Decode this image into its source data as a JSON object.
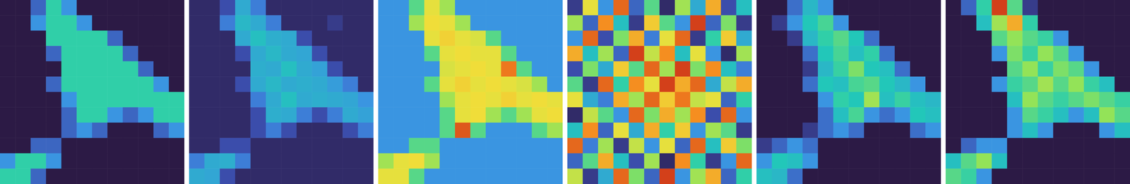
{
  "chart_data": [
    {
      "type": "heatmap",
      "tick_labels": false,
      "zlim": [
        0,
        1
      ],
      "cells": [
        [
          0,
          0,
          0.2,
          0.45,
          0.3,
          0,
          0,
          0,
          0,
          0,
          0,
          0
        ],
        [
          0,
          0,
          0.3,
          0.45,
          0.45,
          0.3,
          0,
          0,
          0,
          0,
          0,
          0
        ],
        [
          0,
          0,
          0,
          0.45,
          0.45,
          0.45,
          0.45,
          0.2,
          0,
          0,
          0,
          0
        ],
        [
          0,
          0,
          0,
          0.2,
          0.45,
          0.45,
          0.45,
          0.45,
          0.2,
          0,
          0,
          0
        ],
        [
          0,
          0,
          0,
          0,
          0.45,
          0.45,
          0.45,
          0.45,
          0.45,
          0.2,
          0,
          0
        ],
        [
          0,
          0,
          0,
          0.2,
          0.45,
          0.45,
          0.45,
          0.45,
          0.45,
          0.45,
          0.3,
          0
        ],
        [
          0,
          0,
          0,
          0,
          0.3,
          0.45,
          0.45,
          0.45,
          0.45,
          0.45,
          0.45,
          0.45
        ],
        [
          0,
          0,
          0,
          0,
          0.2,
          0.45,
          0.45,
          0.3,
          0.2,
          0.3,
          0.45,
          0.45
        ],
        [
          0,
          0,
          0,
          0,
          0.2,
          0.3,
          0.2,
          0,
          0,
          0,
          0.2,
          0.3
        ],
        [
          0,
          0,
          0.2,
          0.2,
          0,
          0,
          0,
          0,
          0,
          0,
          0,
          0
        ],
        [
          0.3,
          0.45,
          0.45,
          0.3,
          0,
          0,
          0,
          0,
          0,
          0,
          0,
          0
        ],
        [
          0.45,
          0.45,
          0.2,
          0,
          0,
          0,
          0,
          0,
          0,
          0,
          0,
          0
        ]
      ]
    },
    {
      "type": "heatmap",
      "tick_labels": false,
      "zlim": [
        0,
        1
      ],
      "cells": [
        [
          0.05,
          0.05,
          0.15,
          0.35,
          0.25,
          0.05,
          0.05,
          0.05,
          0.05,
          0.05,
          0.05,
          0.05
        ],
        [
          0.05,
          0.05,
          0.25,
          0.38,
          0.35,
          0.25,
          0.05,
          0.05,
          0.05,
          0.1,
          0.05,
          0.05
        ],
        [
          0.05,
          0.05,
          0.05,
          0.35,
          0.4,
          0.36,
          0.35,
          0.15,
          0.05,
          0.05,
          0.05,
          0.05
        ],
        [
          0.05,
          0.05,
          0.05,
          0.15,
          0.35,
          0.38,
          0.35,
          0.34,
          0.15,
          0.05,
          0.05,
          0.05
        ],
        [
          0.05,
          0.05,
          0.05,
          0.05,
          0.36,
          0.35,
          0.4,
          0.35,
          0.33,
          0.15,
          0.05,
          0.05
        ],
        [
          0.05,
          0.05,
          0.05,
          0.15,
          0.35,
          0.38,
          0.35,
          0.36,
          0.35,
          0.32,
          0.25,
          0.05
        ],
        [
          0.05,
          0.05,
          0.05,
          0.05,
          0.25,
          0.35,
          0.4,
          0.35,
          0.36,
          0.35,
          0.34,
          0.3
        ],
        [
          0.05,
          0.05,
          0.05,
          0.05,
          0.15,
          0.36,
          0.35,
          0.25,
          0.15,
          0.25,
          0.35,
          0.33
        ],
        [
          0.05,
          0.05,
          0.05,
          0.05,
          0.15,
          0.25,
          0.15,
          0.05,
          0.05,
          0.05,
          0.15,
          0.25
        ],
        [
          0.05,
          0.05,
          0.15,
          0.15,
          0.05,
          0.05,
          0.05,
          0.05,
          0.05,
          0.05,
          0.05,
          0.05
        ],
        [
          0.25,
          0.35,
          0.36,
          0.25,
          0.05,
          0.05,
          0.05,
          0.05,
          0.05,
          0.05,
          0.05,
          0.05
        ],
        [
          0.35,
          0.34,
          0.15,
          0.05,
          0.05,
          0.05,
          0.05,
          0.05,
          0.05,
          0.05,
          0.05,
          0.05
        ]
      ]
    },
    {
      "type": "heatmap",
      "tick_labels": false,
      "zlim": [
        0,
        1
      ],
      "cells": [
        [
          0.3,
          0.3,
          0.5,
          0.7,
          0.6,
          0.3,
          0.3,
          0.3,
          0.3,
          0.3,
          0.3,
          0.3
        ],
        [
          0.3,
          0.3,
          0.6,
          0.72,
          0.7,
          0.6,
          0.3,
          0.3,
          0.3,
          0.3,
          0.3,
          0.3
        ],
        [
          0.3,
          0.3,
          0.3,
          0.7,
          0.74,
          0.7,
          0.68,
          0.5,
          0.3,
          0.3,
          0.3,
          0.3
        ],
        [
          0.3,
          0.3,
          0.3,
          0.5,
          0.7,
          0.72,
          0.7,
          0.7,
          0.5,
          0.3,
          0.3,
          0.3
        ],
        [
          0.3,
          0.3,
          0.3,
          0.3,
          0.68,
          0.7,
          0.72,
          0.7,
          0.88,
          0.5,
          0.3,
          0.3
        ],
        [
          0.3,
          0.3,
          0.3,
          0.5,
          0.7,
          0.74,
          0.7,
          0.72,
          0.7,
          0.68,
          0.6,
          0.3
        ],
        [
          0.3,
          0.3,
          0.3,
          0.3,
          0.6,
          0.7,
          0.72,
          0.7,
          0.74,
          0.7,
          0.72,
          0.7
        ],
        [
          0.3,
          0.3,
          0.3,
          0.3,
          0.5,
          0.7,
          0.72,
          0.6,
          0.5,
          0.6,
          0.7,
          0.72
        ],
        [
          0.3,
          0.3,
          0.3,
          0.3,
          0.5,
          0.92,
          0.5,
          0.3,
          0.3,
          0.3,
          0.5,
          0.6
        ],
        [
          0.3,
          0.3,
          0.5,
          0.5,
          0.3,
          0.3,
          0.3,
          0.3,
          0.3,
          0.3,
          0.3,
          0.3
        ],
        [
          0.6,
          0.7,
          0.72,
          0.6,
          0.3,
          0.3,
          0.3,
          0.3,
          0.3,
          0.3,
          0.3,
          0.3
        ],
        [
          0.7,
          0.7,
          0.5,
          0.3,
          0.3,
          0.3,
          0.3,
          0.3,
          0.3,
          0.3,
          0.3,
          0.3
        ]
      ]
    },
    {
      "type": "heatmap",
      "tick_labels": false,
      "zlim": [
        0,
        1
      ],
      "cells": [
        [
          0.1,
          0.7,
          0.3,
          0.9,
          0.2,
          0.5,
          0.05,
          0.6,
          0.35,
          0.8,
          0.15,
          0.4
        ],
        [
          0.6,
          0.2,
          0.85,
          0.4,
          0.1,
          0.75,
          0.5,
          0.3,
          0.95,
          0.2,
          0.55,
          0.1
        ],
        [
          0.3,
          0.9,
          0.15,
          0.55,
          0.8,
          0.25,
          0.7,
          0.9,
          0.1,
          0.45,
          0.75,
          0.35
        ],
        [
          0.8,
          0.4,
          0.6,
          0.2,
          0.95,
          0.65,
          0.85,
          0.4,
          0.7,
          0.3,
          0.05,
          0.6
        ],
        [
          0.15,
          0.55,
          0.35,
          0.75,
          0.5,
          0.9,
          0.6,
          0.95,
          0.55,
          0.85,
          0.4,
          0.25
        ],
        [
          0.5,
          0.1,
          0.9,
          0.45,
          0.85,
          0.7,
          0.95,
          0.8,
          0.9,
          0.35,
          0.65,
          0.8
        ],
        [
          0.7,
          0.35,
          0.25,
          0.8,
          0.6,
          0.9,
          0.75,
          0.88,
          0.65,
          0.7,
          0.2,
          0.45
        ],
        [
          0.05,
          0.65,
          0.5,
          0.3,
          0.9,
          0.55,
          0.8,
          0.6,
          0.85,
          0.15,
          0.9,
          0.3
        ],
        [
          0.4,
          0.85,
          0.2,
          0.7,
          0.35,
          0.8,
          0.45,
          0.75,
          0.3,
          0.6,
          0.5,
          0.1
        ],
        [
          0.9,
          0.25,
          0.6,
          0.1,
          0.65,
          0.3,
          0.7,
          0.2,
          0.9,
          0.4,
          0.75,
          0.55
        ],
        [
          0.2,
          0.5,
          0.8,
          0.4,
          0.15,
          0.6,
          0.05,
          0.85,
          0.45,
          0.1,
          0.3,
          0.9
        ],
        [
          0.65,
          0.1,
          0.35,
          0.9,
          0.55,
          0.2,
          0.95,
          0.3,
          0.6,
          0.8,
          0.2,
          0.45
        ]
      ]
    },
    {
      "type": "heatmap",
      "tick_labels": false,
      "zlim": [
        0,
        1
      ],
      "cells": [
        [
          0,
          0,
          0.22,
          0.38,
          0.3,
          0,
          0,
          0,
          0,
          0,
          0,
          0
        ],
        [
          0,
          0.1,
          0.3,
          0.42,
          0.48,
          0.3,
          0,
          0,
          0,
          0,
          0,
          0
        ],
        [
          0,
          0,
          0.1,
          0.38,
          0.45,
          0.5,
          0.42,
          0.22,
          0,
          0,
          0,
          0
        ],
        [
          0,
          0,
          0,
          0.22,
          0.42,
          0.48,
          0.4,
          0.45,
          0.22,
          0,
          0,
          0
        ],
        [
          0,
          0,
          0,
          0.1,
          0.38,
          0.46,
          0.55,
          0.42,
          0.4,
          0.22,
          0,
          0
        ],
        [
          0,
          0,
          0,
          0.22,
          0.42,
          0.4,
          0.48,
          0.5,
          0.42,
          0.38,
          0.3,
          0
        ],
        [
          0,
          0,
          0,
          0,
          0.3,
          0.45,
          0.42,
          0.6,
          0.4,
          0.46,
          0.4,
          0.38
        ],
        [
          0,
          0,
          0,
          0,
          0.22,
          0.4,
          0.48,
          0.3,
          0.22,
          0.3,
          0.42,
          0.4
        ],
        [
          0,
          0,
          0,
          0.1,
          0.22,
          0.3,
          0.22,
          0,
          0,
          0,
          0.22,
          0.3
        ],
        [
          0.1,
          0.2,
          0.3,
          0.22,
          0,
          0,
          0,
          0,
          0,
          0,
          0,
          0
        ],
        [
          0.3,
          0.42,
          0.4,
          0.3,
          0,
          0,
          0,
          0,
          0,
          0,
          0,
          0
        ],
        [
          0.4,
          0.38,
          0.22,
          0,
          0,
          0,
          0,
          0,
          0,
          0,
          0,
          0
        ]
      ]
    },
    {
      "type": "heatmap",
      "tick_labels": false,
      "zlim": [
        0,
        1
      ],
      "cells": [
        [
          0,
          0.2,
          0.45,
          0.95,
          0.5,
          0.1,
          0,
          0,
          0,
          0,
          0,
          0
        ],
        [
          0,
          0,
          0.4,
          0.6,
          0.8,
          0.45,
          0,
          0,
          0,
          0,
          0,
          0
        ],
        [
          0,
          0,
          0,
          0.5,
          0.58,
          0.5,
          0.46,
          0.3,
          0,
          0,
          0,
          0
        ],
        [
          0,
          0,
          0,
          0.3,
          0.55,
          0.46,
          0.58,
          0.5,
          0.3,
          0,
          0,
          0
        ],
        [
          0,
          0,
          0,
          0,
          0.5,
          0.58,
          0.46,
          0.55,
          0.5,
          0.3,
          0,
          0
        ],
        [
          0,
          0,
          0,
          0.3,
          0.46,
          0.5,
          0.6,
          0.5,
          0.58,
          0.46,
          0.4,
          0
        ],
        [
          0,
          0,
          0,
          0,
          0.4,
          0.58,
          0.5,
          0.46,
          0.5,
          0.55,
          0.5,
          0.46
        ],
        [
          0,
          0,
          0,
          0,
          0.3,
          0.5,
          0.46,
          0.4,
          0.3,
          0.4,
          0.58,
          0.5
        ],
        [
          0,
          0,
          0,
          0,
          0.3,
          0.4,
          0.3,
          0,
          0,
          0,
          0.3,
          0.4
        ],
        [
          0,
          0.2,
          0.3,
          0.3,
          0,
          0,
          0,
          0,
          0,
          0,
          0,
          0
        ],
        [
          0.4,
          0.5,
          0.58,
          0.4,
          0,
          0,
          0,
          0,
          0,
          0,
          0,
          0
        ],
        [
          0.5,
          0.46,
          0.3,
          0,
          0,
          0,
          0,
          0,
          0,
          0,
          0,
          0
        ]
      ]
    }
  ]
}
